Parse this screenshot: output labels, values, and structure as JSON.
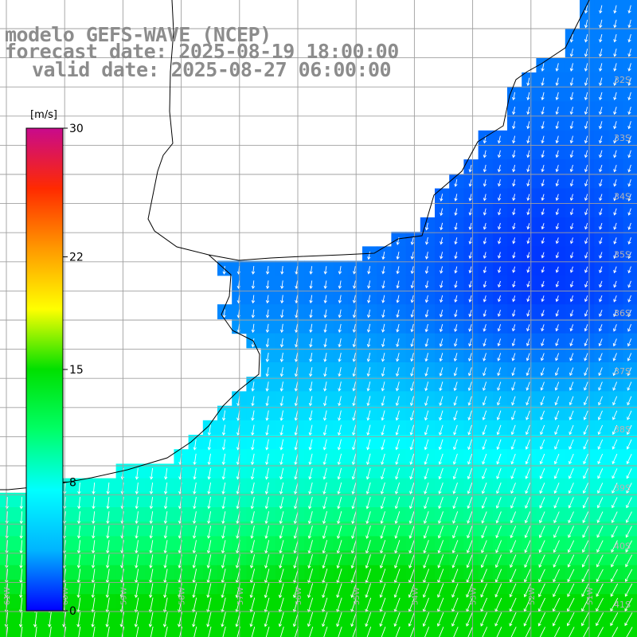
{
  "titles": {
    "model": "modelo GEFS-WAVE (NCEP)",
    "forecast": "forecast date: 2025-08-19 18:00:00",
    "valid": "valid date: 2025-08-27 06:00:00"
  },
  "colorbar": {
    "unit_label": "[m/s]",
    "ticks": [
      {
        "value": 30,
        "label": "30"
      },
      {
        "value": 22,
        "label": "22"
      },
      {
        "value": 15,
        "label": "15"
      },
      {
        "value": 8,
        "label": "8"
      },
      {
        "value": 0,
        "label": "0"
      }
    ],
    "colors": [
      "#0000ff",
      "#00b4ff",
      "#00ffff",
      "#00ff66",
      "#00e000",
      "#ffff00",
      "#ff9900",
      "#ff2a00",
      "#c80a8c"
    ]
  },
  "map": {
    "lat_labels": [
      "32S",
      "33S",
      "34S",
      "35S",
      "36S",
      "37S",
      "38S",
      "39S",
      "40S",
      "41S"
    ],
    "lon_labels": [
      "61W",
      "60W",
      "59W",
      "58W",
      "57W",
      "56W",
      "55W",
      "54W",
      "53W",
      "52W",
      "51W"
    ],
    "label_color": "#b4b4b4",
    "grid_color": "#a0a0a0",
    "coast_color": "#000000",
    "vector_color": "#ffffff"
  }
}
